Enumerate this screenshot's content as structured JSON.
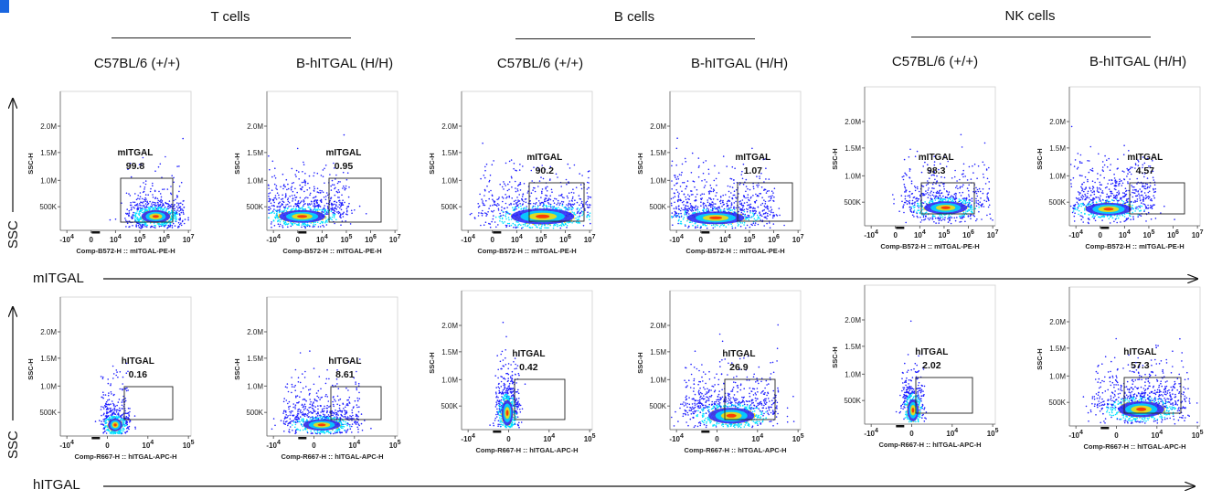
{
  "groups": [
    {
      "title": "T cells"
    },
    {
      "title": "B cells"
    },
    {
      "title": "NK cells"
    }
  ],
  "strains": [
    "C57BL/6 (+/+)",
    "B-hITGAL (H/H)",
    "C57BL/6 (+/+)",
    "B-hITGAL (H/H)",
    "C57BL/6 (+/+)",
    "B-hITGAL (H/H)"
  ],
  "rows": [
    {
      "y_axis_label": "SSC",
      "x_axis_label": "mITGAL"
    },
    {
      "y_axis_label": "SSC",
      "x_axis_label": "hITGAL"
    }
  ],
  "colors": {
    "corner_mark": "#1a66e0",
    "density_low": "#2020ff",
    "density_mid": "#00e0ff",
    "density_high": "#ffe000",
    "density_peak": "#ff2000"
  },
  "chart_data": [
    {
      "type": "scatter",
      "row": 0,
      "col": 0,
      "cell_type": "T cells",
      "strain": "C57BL/6 (+/+)",
      "xlabel": "Comp-B572-H :: mITGAL-PE-H",
      "ylabel": "SSC-H",
      "y_ticks": [
        "500K",
        "1.0M",
        "1.5M",
        "2.0M"
      ],
      "x_ticks": [
        "-10^4",
        "0",
        "10^4",
        "10^5",
        "10^6",
        "10^7"
      ],
      "gate": {
        "name": "mITGAL",
        "value": "99.8"
      },
      "population": {
        "center_x": "10^5",
        "spread": "narrow"
      }
    },
    {
      "type": "scatter",
      "row": 0,
      "col": 1,
      "cell_type": "T cells",
      "strain": "B-hITGAL (H/H)",
      "xlabel": "Comp-B572-H :: mITGAL-PE-H",
      "ylabel": "SSC-H",
      "y_ticks": [
        "500K",
        "1.0M",
        "1.5M",
        "2.0M"
      ],
      "x_ticks": [
        "-10^4",
        "0",
        "10^4",
        "10^5",
        "10^6",
        "10^7"
      ],
      "gate": {
        "name": "mITGAL",
        "value": "0.95"
      },
      "population": {
        "center_x": "0",
        "spread": "wide"
      }
    },
    {
      "type": "scatter",
      "row": 0,
      "col": 2,
      "cell_type": "B cells",
      "strain": "C57BL/6 (+/+)",
      "xlabel": "Comp-B572-H :: mITGAL-PE-H",
      "ylabel": "SSC-H",
      "y_ticks": [
        "500K",
        "1.0M",
        "1.5M",
        "2.0M"
      ],
      "x_ticks": [
        "-10^4",
        "0",
        "10^4",
        "10^5",
        "10^6",
        "10^7"
      ],
      "gate": {
        "name": "mITGAL",
        "value": "90.2"
      },
      "population": {
        "center_x": "10^4-10^5",
        "spread": "wide"
      }
    },
    {
      "type": "scatter",
      "row": 0,
      "col": 3,
      "cell_type": "B cells",
      "strain": "B-hITGAL (H/H)",
      "xlabel": "Comp-B572-H :: mITGAL-PE-H",
      "ylabel": "SSC-H",
      "y_ticks": [
        "500K",
        "1.0M",
        "1.5M",
        "2.0M"
      ],
      "x_ticks": [
        "-10^4",
        "0",
        "10^4",
        "10^5",
        "10^6",
        "10^7"
      ],
      "gate": {
        "name": "mITGAL",
        "value": "1.07"
      },
      "population": {
        "center_x": "0",
        "spread": "wide"
      }
    },
    {
      "type": "scatter",
      "row": 0,
      "col": 4,
      "cell_type": "NK cells",
      "strain": "C57BL/6 (+/+)",
      "xlabel": "Comp-B572-H :: mITGAL-PE-H",
      "ylabel": "SSC-H",
      "y_ticks": [
        "500K",
        "1.0M",
        "1.5M",
        "2.0M"
      ],
      "x_ticks": [
        "-10^4",
        "0",
        "10^4",
        "10^5",
        "10^6",
        "10^7"
      ],
      "gate": {
        "name": "mITGAL",
        "value": "98.3"
      },
      "population": {
        "center_x": "10^5",
        "spread": "medium"
      }
    },
    {
      "type": "scatter",
      "row": 0,
      "col": 5,
      "cell_type": "NK cells",
      "strain": "B-hITGAL (H/H)",
      "xlabel": "Comp-B572-H :: mITGAL-PE-H",
      "ylabel": "SSC-H",
      "y_ticks": [
        "500K",
        "1.0M",
        "1.5M",
        "2.0M"
      ],
      "x_ticks": [
        "-10^4",
        "0",
        "10^4",
        "10^5",
        "10^6",
        "10^7"
      ],
      "gate": {
        "name": "mITGAL",
        "value": "4.57"
      },
      "population": {
        "center_x": "0",
        "spread": "medium"
      }
    },
    {
      "type": "scatter",
      "row": 1,
      "col": 0,
      "cell_type": "T cells",
      "strain": "C57BL/6 (+/+)",
      "xlabel": "Comp-R667-H :: hITGAL-APC-H",
      "ylabel": "SSC-H",
      "y_ticks": [
        "500K",
        "1.0M",
        "1.5M",
        "2.0M"
      ],
      "x_ticks": [
        "-10^4",
        "0",
        "10^4",
        "10^5"
      ],
      "gate": {
        "name": "hITGAL",
        "value": "0.16"
      },
      "population": {
        "center_x": "0",
        "spread": "narrow"
      }
    },
    {
      "type": "scatter",
      "row": 1,
      "col": 1,
      "cell_type": "T cells",
      "strain": "B-hITGAL (H/H)",
      "xlabel": "Comp-R667-H :: hITGAL-APC-H",
      "ylabel": "SSC-H",
      "y_ticks": [
        "500K",
        "1.0M",
        "1.5M",
        "2.0M"
      ],
      "x_ticks": [
        "-10^4",
        "0",
        "10^4",
        "10^5"
      ],
      "gate": {
        "name": "hITGAL",
        "value": "8.61"
      },
      "population": {
        "center_x": "10^3",
        "spread": "medium"
      }
    },
    {
      "type": "scatter",
      "row": 1,
      "col": 2,
      "cell_type": "B cells",
      "strain": "C57BL/6 (+/+)",
      "xlabel": "Comp-R667-H :: hITGAL-APC-H",
      "ylabel": "SSC-H",
      "y_ticks": [
        "500K",
        "1.0M",
        "1.5M",
        "2.0M"
      ],
      "x_ticks": [
        "-10^4",
        "0",
        "10^4",
        "10^5"
      ],
      "gate": {
        "name": "hITGAL",
        "value": "0.42"
      },
      "population": {
        "center_x": "0",
        "spread": "narrow"
      }
    },
    {
      "type": "scatter",
      "row": 1,
      "col": 3,
      "cell_type": "B cells",
      "strain": "B-hITGAL (H/H)",
      "xlabel": "Comp-R667-H :: hITGAL-APC-H",
      "ylabel": "SSC-H",
      "y_ticks": [
        "500K",
        "1.0M",
        "1.5M",
        "2.0M"
      ],
      "x_ticks": [
        "-10^4",
        "0",
        "10^4",
        "10^5"
      ],
      "gate": {
        "name": "hITGAL",
        "value": "26.9"
      },
      "population": {
        "center_x": "10^3",
        "spread": "wide"
      }
    },
    {
      "type": "scatter",
      "row": 1,
      "col": 4,
      "cell_type": "NK cells",
      "strain": "C57BL/6 (+/+)",
      "xlabel": "Comp-R667-H :: hITGAL-APC-H",
      "ylabel": "SSC-H",
      "y_ticks": [
        "500K",
        "1.0M",
        "1.5M",
        "2.0M"
      ],
      "x_ticks": [
        "-10^4",
        "0",
        "10^4",
        "10^5"
      ],
      "gate": {
        "name": "hITGAL",
        "value": "2.02"
      },
      "population": {
        "center_x": "0",
        "spread": "narrow"
      }
    },
    {
      "type": "scatter",
      "row": 1,
      "col": 5,
      "cell_type": "NK cells",
      "strain": "B-hITGAL (H/H)",
      "xlabel": "Comp-R667-H :: hITGAL-APC-H",
      "ylabel": "SSC-H",
      "y_ticks": [
        "500K",
        "1.0M",
        "1.5M",
        "2.0M"
      ],
      "x_ticks": [
        "-10^4",
        "0",
        "10^4",
        "10^5"
      ],
      "gate": {
        "name": "hITGAL",
        "value": "57.3"
      },
      "population": {
        "center_x": "10^4",
        "spread": "wide"
      }
    }
  ]
}
